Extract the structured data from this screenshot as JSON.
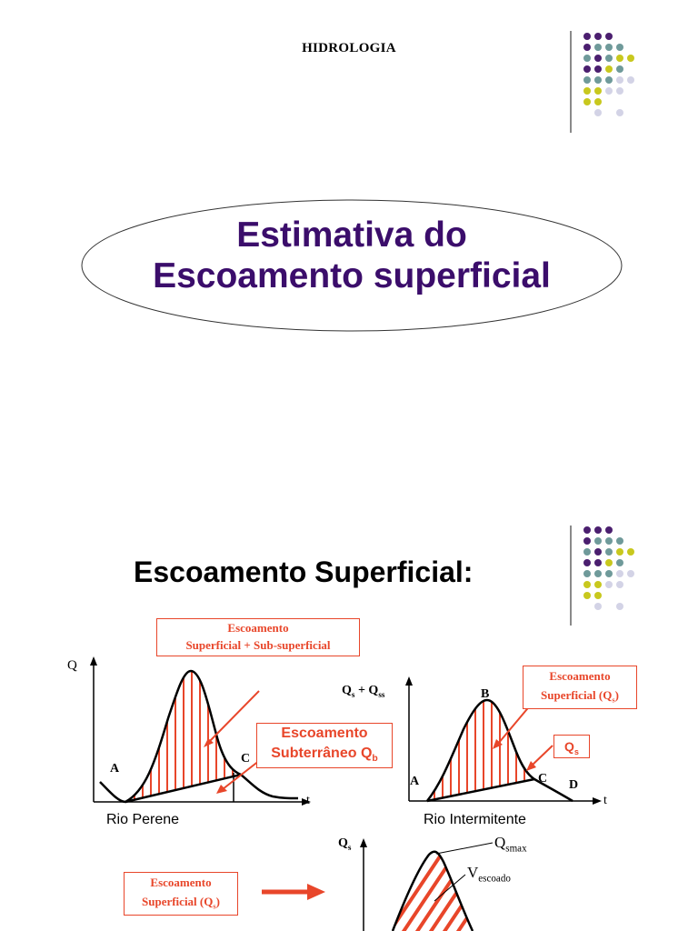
{
  "header": {
    "title": "HIDROLOGIA"
  },
  "slide1": {
    "title_line1": "Estimativa do",
    "title_line2": "Escoamento superficial"
  },
  "slide2": {
    "title": "Escoamento Superficial:",
    "left_chart": {
      "y_axis_label": "Q",
      "x_axis_label": "t",
      "point_a": "A",
      "point_c": "C",
      "caption": "Rio Perene",
      "box_top_line1": "Escoamento",
      "box_top_line2": "Superficial + Sub-superficial",
      "box_sub_line1": "Escoamento",
      "box_sub_line2": "Subterrâneo Q",
      "box_sub_subscript": "b"
    },
    "right_chart": {
      "y_axis_label": "Q",
      "y_axis_sub1": "s",
      "y_axis_plus": " + Q",
      "y_axis_sub2": "ss",
      "x_axis_label": "t",
      "point_a": "A",
      "point_b": "B",
      "point_c": "C",
      "point_d": "D",
      "caption": "Rio Intermitente",
      "box_line1": "Escoamento",
      "box_line2": "Superficial (Q",
      "box_line2_sub": "s",
      "box_line2_end": ")",
      "qs_box": "Q",
      "qs_box_sub": "s"
    },
    "bottom_chart": {
      "y_axis_label": "Q",
      "y_axis_sub": "s",
      "qsmax": "Q",
      "qsmax_sub": "smax",
      "vescoado": "V",
      "vescoado_sub": "escoado",
      "box_line1": "Escoamento",
      "box_line2": "Superficial (Q",
      "box_line2_sub": "s",
      "box_line2_end": ")"
    }
  },
  "colors": {
    "title_purple": "#3b0d6b",
    "accent_orange": "#e8462a",
    "dot_purple": "#4b1f6f",
    "dot_teal": "#6f9a9a",
    "dot_yellow": "#c8c81e",
    "dot_lavender": "#d3d3e6"
  },
  "icons": {
    "decor": "dot-grid-icon",
    "arrow": "arrow-right-icon"
  }
}
